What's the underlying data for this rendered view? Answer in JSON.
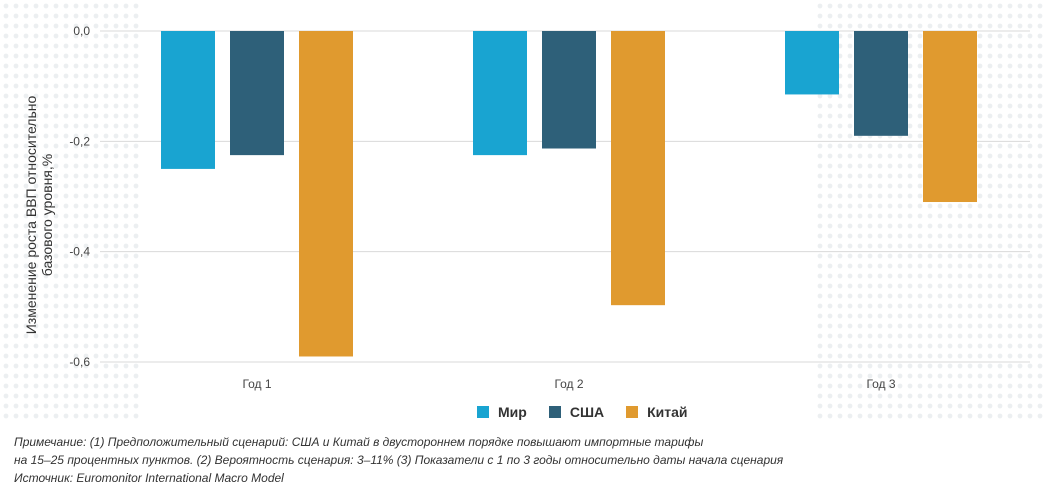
{
  "chart_data": {
    "type": "bar",
    "categories": [
      "Год 1",
      "Год 2",
      "Год 3"
    ],
    "series": [
      {
        "name": "Мир",
        "color": "#19a4d1",
        "values": [
          -0.25,
          -0.225,
          -0.115
        ]
      },
      {
        "name": "США",
        "color": "#2e6079",
        "values": [
          -0.225,
          -0.213,
          -0.19
        ]
      },
      {
        "name": "Китай",
        "color": "#e09a2f",
        "values": [
          -0.59,
          -0.497,
          -0.31
        ]
      }
    ],
    "ylabel": "Изменение роста ВВП относительно базового уровня,%",
    "ylabel_lines": [
      "Изменение роста ВВП относительно",
      "базового уровня,%"
    ],
    "ylim": [
      -0.6,
      0
    ],
    "yticks": [
      0,
      -0.2,
      -0.4,
      -0.6
    ],
    "ytick_labels": [
      "0,0",
      "-0,2",
      "-0,4",
      "-0,6"
    ],
    "grid": true,
    "legend_position": "bottom-center"
  },
  "notes": [
    "Примечание: (1) Предположительный сценарий: США и Китай в двустороннем порядке повышают импортные тарифы",
    "на 15–25 процентных пунктов. (2) Вероятность сценария: 3–11% (3) Показатели с 1 по 3 годы относительно даты начала сценария",
    "Источник: Euromonitor International Macro Model"
  ]
}
